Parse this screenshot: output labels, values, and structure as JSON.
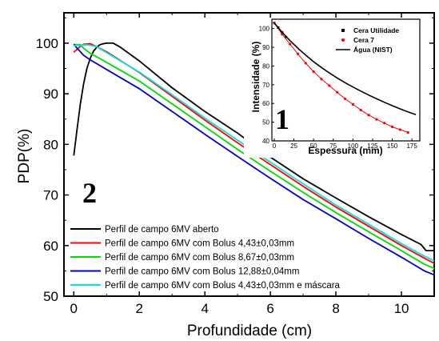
{
  "chart_data": [
    {
      "type": "line",
      "xlabel": "Profundidade (cm)",
      "ylabel": "PDP(%)",
      "xlim": [
        -0.3,
        11
      ],
      "ylim": [
        50,
        106
      ],
      "xticks": [
        0,
        2,
        4,
        6,
        8,
        10
      ],
      "yticks": [
        50,
        60,
        70,
        80,
        90,
        100
      ],
      "panel_label": "2",
      "legend_position": "bottom-left",
      "series": [
        {
          "name": "Perfil de campo 6MV aberto",
          "color": "#000000",
          "points": [
            [
              0,
              77.8
            ],
            [
              0.1,
              83
            ],
            [
              0.2,
              88
            ],
            [
              0.3,
              92
            ],
            [
              0.4,
              95
            ],
            [
              0.5,
              97
            ],
            [
              0.6,
              98.4
            ],
            [
              0.7,
              99.2
            ],
            [
              0.8,
              99.7
            ],
            [
              0.9,
              99.9
            ],
            [
              1.0,
              100
            ],
            [
              1.2,
              100
            ],
            [
              1.4,
              99.3
            ],
            [
              2,
              96.5
            ],
            [
              3,
              91.2
            ],
            [
              4,
              86.5
            ],
            [
              5,
              82.2
            ],
            [
              6,
              77.5
            ],
            [
              7,
              73.2
            ],
            [
              8,
              69.4
            ],
            [
              9,
              65.7
            ],
            [
              10,
              62.2
            ],
            [
              10.6,
              60.2
            ],
            [
              10.75,
              59
            ],
            [
              11,
              59
            ]
          ]
        },
        {
          "name": "Perfil de campo 6MV com Bolus 4,43±0,03mm",
          "color": "#ff0000",
          "points": [
            [
              0,
              98.2
            ],
            [
              0.1,
              98.8
            ],
            [
              0.2,
              99.4
            ],
            [
              0.3,
              99.8
            ],
            [
              0.5,
              99.9
            ],
            [
              0.7,
              99.3
            ],
            [
              1,
              98.3
            ],
            [
              2,
              94.2
            ],
            [
              3,
              89.5
            ],
            [
              4,
              84.8
            ],
            [
              5,
              80.3
            ],
            [
              6,
              76
            ],
            [
              7,
              71.7
            ],
            [
              8,
              67.6
            ],
            [
              9,
              63.8
            ],
            [
              10,
              60
            ],
            [
              10.7,
              57.5
            ],
            [
              11,
              56.5
            ]
          ]
        },
        {
          "name": "Perfil de campo 6MV com Bolus 8,67±0,03mm",
          "color": "#00dd00",
          "points": [
            [
              0,
              99.7
            ],
            [
              0.2,
              99.7
            ],
            [
              0.3,
              99
            ],
            [
              0.5,
              98
            ],
            [
              1,
              96.2
            ],
            [
              2,
              92.5
            ],
            [
              3,
              88
            ],
            [
              4,
              83.5
            ],
            [
              5,
              79
            ],
            [
              6,
              74.7
            ],
            [
              7,
              70.5
            ],
            [
              8,
              66.5
            ],
            [
              9,
              62.7
            ],
            [
              10,
              59
            ],
            [
              10.7,
              56.3
            ],
            [
              11,
              55.5
            ]
          ]
        },
        {
          "name": "Perfil de campo 6MV com Bolus 12,88±0,04mm",
          "color": "#0000cc",
          "points": [
            [
              0,
              99.8
            ],
            [
              0.1,
              99
            ],
            [
              0.3,
              97.6
            ],
            [
              0.5,
              96.7
            ],
            [
              1,
              94.8
            ],
            [
              2,
              91
            ],
            [
              3,
              86.5
            ],
            [
              4,
              82
            ],
            [
              5,
              77.6
            ],
            [
              6,
              73.3
            ],
            [
              7,
              69.1
            ],
            [
              8,
              65.3
            ],
            [
              9,
              61.4
            ],
            [
              10,
              57.7
            ],
            [
              10.7,
              55
            ],
            [
              11,
              54.2
            ]
          ]
        },
        {
          "name": "Perfil de campo 6MV com Bolus 4,43±0,03mm e máscara",
          "color": "#00e5e5",
          "points": [
            [
              0,
              99.5
            ],
            [
              0.4,
              99.7
            ],
            [
              0.7,
              99.3
            ],
            [
              1,
              98.1
            ],
            [
              2,
              94.3
            ],
            [
              3,
              89.8
            ],
            [
              4,
              85.2
            ],
            [
              5,
              80.8
            ],
            [
              6,
              76.5
            ],
            [
              7,
              72.2
            ],
            [
              8,
              68
            ],
            [
              9,
              64.2
            ],
            [
              10,
              60.4
            ],
            [
              10.7,
              57.9
            ],
            [
              11,
              57
            ]
          ]
        }
      ]
    },
    {
      "type": "scatter",
      "xlabel": "Espessura (mm)",
      "ylabel": "Intensidade (%)",
      "xlim": [
        -3,
        185
      ],
      "ylim": [
        40,
        105
      ],
      "xticks": [
        0,
        25,
        50,
        75,
        100,
        125,
        150,
        175
      ],
      "yticks": [
        40,
        50,
        60,
        70,
        80,
        90,
        100
      ],
      "panel_label": "1",
      "legend_position": "top-right",
      "series": [
        {
          "name": "Cera Utilidade",
          "color": "#000000",
          "marker": "square",
          "points": [
            [
              0,
              103
            ],
            [
              5,
              100.5
            ],
            [
              10,
              98
            ],
            [
              15,
              95.5
            ]
          ]
        },
        {
          "name": "Cera 7",
          "color": "#ff0000",
          "marker": "circle",
          "points": [
            [
              0,
              103
            ],
            [
              10,
              97
            ],
            [
              20,
              91.7
            ],
            [
              30,
              86.5
            ],
            [
              40,
              81.5
            ],
            [
              50,
              77
            ],
            [
              60,
              73
            ],
            [
              70,
              69.5
            ],
            [
              80,
              66
            ],
            [
              90,
              62.5
            ],
            [
              100,
              59.5
            ],
            [
              110,
              56.5
            ],
            [
              120,
              53.8
            ],
            [
              130,
              51.5
            ],
            [
              140,
              49.5
            ],
            [
              150,
              47.5
            ],
            [
              160,
              46
            ],
            [
              170,
              44.5
            ]
          ]
        },
        {
          "name": "Água (NIST)",
          "color": "#000000",
          "marker": "line",
          "points": [
            [
              0,
              103
            ],
            [
              10,
              98
            ],
            [
              20,
              93.6
            ],
            [
              30,
              89.5
            ],
            [
              40,
              85.8
            ],
            [
              50,
              82.3
            ],
            [
              60,
              79.2
            ],
            [
              70,
              76.3
            ],
            [
              80,
              73.6
            ],
            [
              90,
              71.1
            ],
            [
              100,
              68.8
            ],
            [
              110,
              66.6
            ],
            [
              120,
              64.5
            ],
            [
              130,
              62.5
            ],
            [
              140,
              60.6
            ],
            [
              150,
              58.8
            ],
            [
              160,
              57.1
            ],
            [
              170,
              55.5
            ],
            [
              180,
              54
            ]
          ]
        }
      ]
    }
  ]
}
